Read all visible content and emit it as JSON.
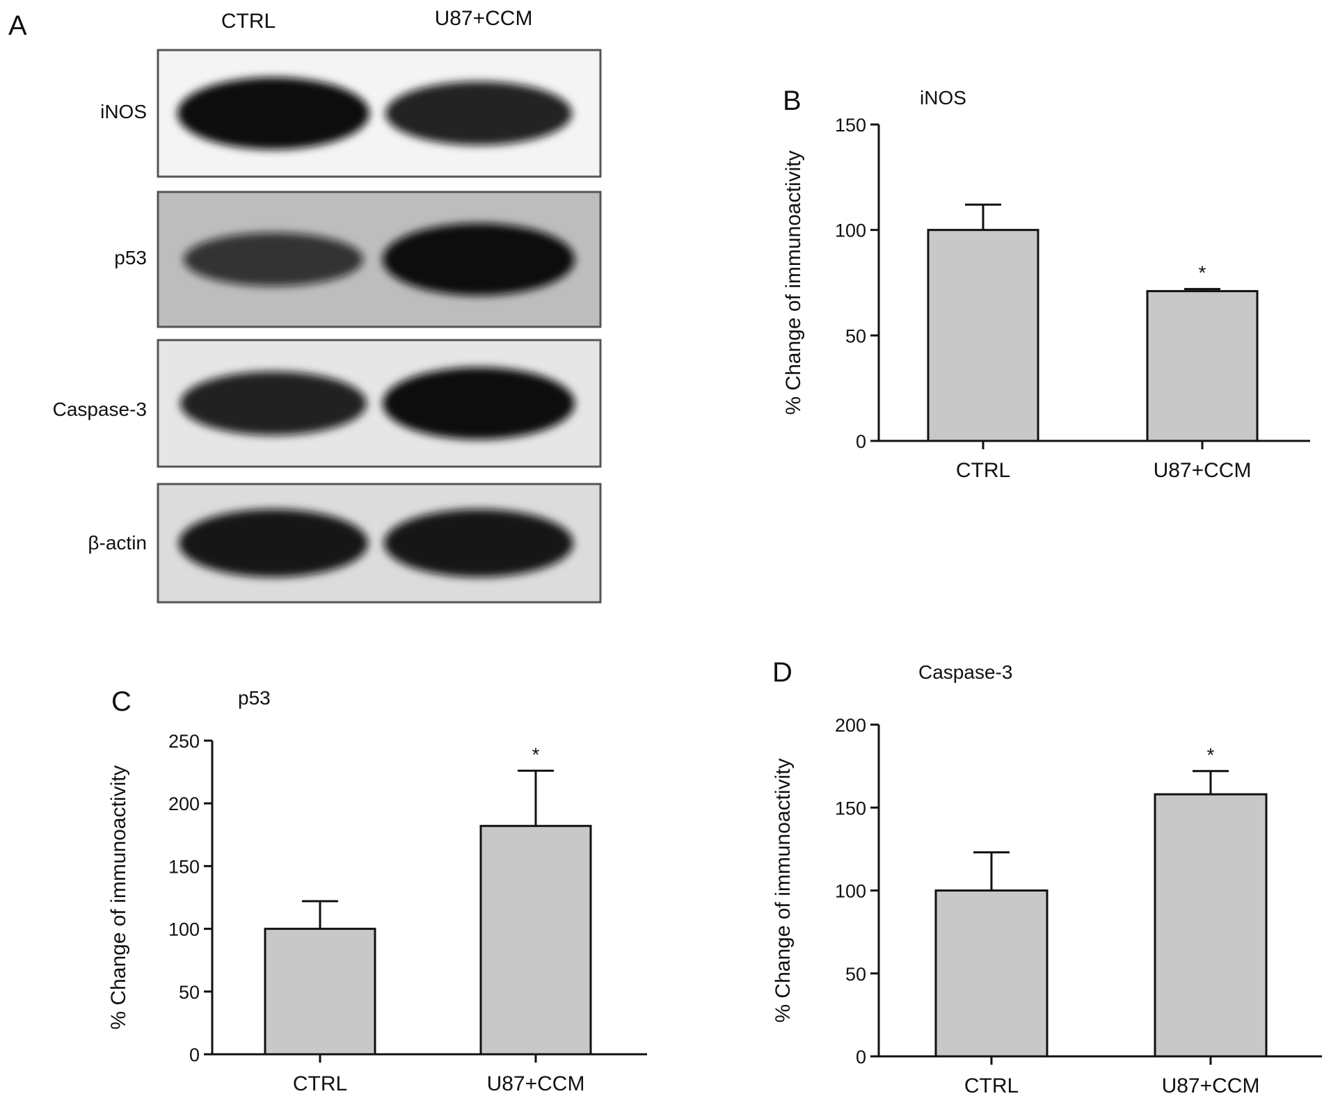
{
  "panel_a": {
    "letter": "A",
    "lanes": [
      "CTRL",
      "U87+CCM"
    ],
    "rows": [
      {
        "label": "iNOS",
        "bg": "#f4f4f4",
        "band_color": "#0a0a0a",
        "intensity": [
          1.0,
          0.8
        ]
      },
      {
        "label": "p53",
        "bg": "#bdbdbd",
        "band_color": "#0a0a0a",
        "intensity": [
          0.55,
          1.0
        ]
      },
      {
        "label": "Caspase-3",
        "bg": "#e6e6e6",
        "band_color": "#0a0a0a",
        "intensity": [
          0.8,
          1.0
        ]
      },
      {
        "label": "β-actin",
        "bg": "#dcdcdc",
        "band_color": "#0a0a0a",
        "intensity": [
          0.9,
          0.9
        ]
      }
    ]
  },
  "chart_data": [
    {
      "panel": "B",
      "type": "bar",
      "title": "iNOS",
      "categories": [
        "CTRL",
        "U87+CCM"
      ],
      "values": [
        100,
        71
      ],
      "errors": [
        12,
        1
      ],
      "significance": [
        "",
        "*"
      ],
      "ylabel": "% Change of immunoactivity",
      "ylim": [
        0,
        150
      ],
      "yticks": [
        0,
        50,
        100,
        150
      ],
      "bar_color": "#c8c8c8"
    },
    {
      "panel": "C",
      "type": "bar",
      "title": "p53",
      "categories": [
        "CTRL",
        "U87+CCM"
      ],
      "values": [
        100,
        182
      ],
      "errors": [
        22,
        44
      ],
      "significance": [
        "",
        "*"
      ],
      "ylabel": "% Change of immunoactivity",
      "ylim": [
        0,
        250
      ],
      "yticks": [
        0,
        50,
        100,
        150,
        200,
        250
      ],
      "bar_color": "#c8c8c8"
    },
    {
      "panel": "D",
      "type": "bar",
      "title": "Caspase-3",
      "categories": [
        "CTRL",
        "U87+CCM"
      ],
      "values": [
        100,
        158
      ],
      "errors": [
        23,
        14
      ],
      "significance": [
        "",
        "*"
      ],
      "ylabel": "% Change of immunoactivity",
      "ylim": [
        0,
        200
      ],
      "yticks": [
        0,
        50,
        100,
        150,
        200
      ],
      "bar_color": "#c8c8c8"
    }
  ]
}
